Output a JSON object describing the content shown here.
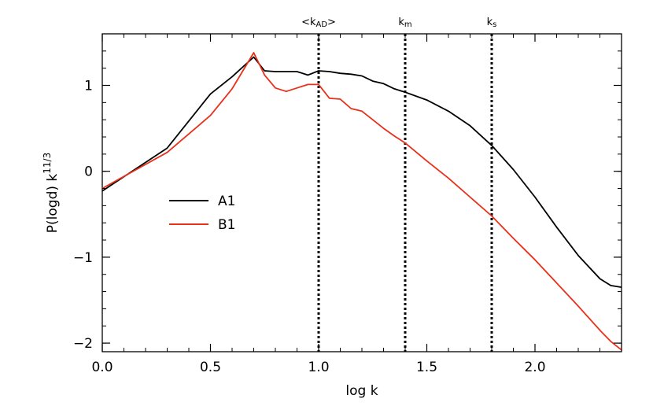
{
  "chart_data": {
    "type": "line",
    "title": "",
    "xlabel": "log k",
    "ylabel_main": "P(logd) k",
    "ylabel_sup": "11/3",
    "xlim": [
      0.0,
      2.4
    ],
    "ylim": [
      -2.1,
      1.6
    ],
    "xticks": [
      {
        "value": 0.0,
        "label": "0.0"
      },
      {
        "value": 0.5,
        "label": "0.5"
      },
      {
        "value": 1.0,
        "label": "1.0"
      },
      {
        "value": 1.5,
        "label": "1.5"
      },
      {
        "value": 2.0,
        "label": "2.0"
      }
    ],
    "yticks": [
      {
        "value": -2,
        "label": "−2"
      },
      {
        "value": -1,
        "label": "−1"
      },
      {
        "value": 0,
        "label": "0"
      },
      {
        "value": 1,
        "label": "1"
      }
    ],
    "grid": false,
    "legend_position": "left",
    "vertical_lines": [
      {
        "x": 1.0,
        "label_main": "<k",
        "label_sub": "AD",
        "label_end": ">"
      },
      {
        "x": 1.4,
        "label_main": "k",
        "label_sub": "m",
        "label_end": ""
      },
      {
        "x": 1.8,
        "label_main": "k",
        "label_sub": "s",
        "label_end": ""
      }
    ],
    "series": [
      {
        "name": "A1",
        "color": "#000000",
        "x": [
          0.0,
          0.3,
          0.5,
          0.6,
          0.7,
          0.75,
          0.8,
          0.85,
          0.9,
          0.95,
          1.0,
          1.05,
          1.1,
          1.15,
          1.2,
          1.25,
          1.3,
          1.35,
          1.4,
          1.5,
          1.6,
          1.7,
          1.8,
          1.9,
          2.0,
          2.1,
          2.2,
          2.3,
          2.35,
          2.4
        ],
        "y": [
          -0.23,
          0.27,
          0.9,
          1.1,
          1.33,
          1.17,
          1.16,
          1.16,
          1.16,
          1.12,
          1.17,
          1.16,
          1.14,
          1.13,
          1.11,
          1.05,
          1.02,
          0.96,
          0.92,
          0.83,
          0.7,
          0.53,
          0.3,
          0.02,
          -0.3,
          -0.65,
          -0.98,
          -1.25,
          -1.33,
          -1.35
        ]
      },
      {
        "name": "B1",
        "color": "#e8301a",
        "x": [
          0.0,
          0.3,
          0.5,
          0.6,
          0.7,
          0.75,
          0.8,
          0.85,
          0.9,
          0.95,
          1.0,
          1.05,
          1.1,
          1.15,
          1.2,
          1.25,
          1.3,
          1.35,
          1.4,
          1.5,
          1.6,
          1.7,
          1.8,
          1.9,
          2.0,
          2.1,
          2.2,
          2.3,
          2.35,
          2.4
        ],
        "y": [
          -0.2,
          0.22,
          0.65,
          0.96,
          1.38,
          1.12,
          0.97,
          0.93,
          0.97,
          1.01,
          1.01,
          0.85,
          0.84,
          0.73,
          0.7,
          0.6,
          0.5,
          0.41,
          0.33,
          0.12,
          -0.08,
          -0.3,
          -0.52,
          -0.78,
          -1.03,
          -1.3,
          -1.57,
          -1.85,
          -1.98,
          -2.08
        ]
      }
    ]
  }
}
